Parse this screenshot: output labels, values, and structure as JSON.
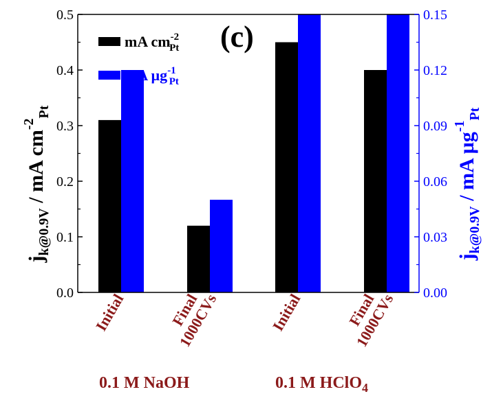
{
  "chart_data": {
    "type": "bar",
    "panel_label": "(c)",
    "categories": [
      {
        "line1": "Initial",
        "line2": ""
      },
      {
        "line1": "Final",
        "line2": "1000CVs"
      },
      {
        "line1": "Initial",
        "line2": ""
      },
      {
        "line1": "Final",
        "line2": "1000CVs"
      }
    ],
    "groups": [
      "0.1 M NaOH",
      "0.1 M HClO",
      "4"
    ],
    "series": [
      {
        "name": "mA cm",
        "sup": "-2",
        "sub": "Pt",
        "axis": "left",
        "color": "#000000",
        "values": [
          0.31,
          0.12,
          0.45,
          0.4
        ]
      },
      {
        "name": "mA µg",
        "sup": "-1",
        "sub": "Pt",
        "axis": "right",
        "color": "#0000ff",
        "values": [
          0.12,
          0.05,
          0.15,
          0.15
        ]
      }
    ],
    "ylim_left": [
      0,
      0.5
    ],
    "ylim_right": [
      0,
      0.15
    ],
    "yticks_left": [
      "0.0",
      "0.1",
      "0.2",
      "0.3",
      "0.4",
      "0.5"
    ],
    "yticks_right": [
      "0.00",
      "0.03",
      "0.06",
      "0.09",
      "0.12",
      "0.15"
    ],
    "ylabel_left": {
      "main": "j",
      "sub": "k@0.9V",
      "rest": " / mA cm",
      "sup": "-2",
      "sub2": "Pt"
    },
    "ylabel_right": {
      "main": "j",
      "sub": "k@0.9V",
      "rest": " / mA µg",
      "sup": "-1",
      "sub2": "Pt"
    },
    "legend_position": "top-left",
    "grid": false
  }
}
